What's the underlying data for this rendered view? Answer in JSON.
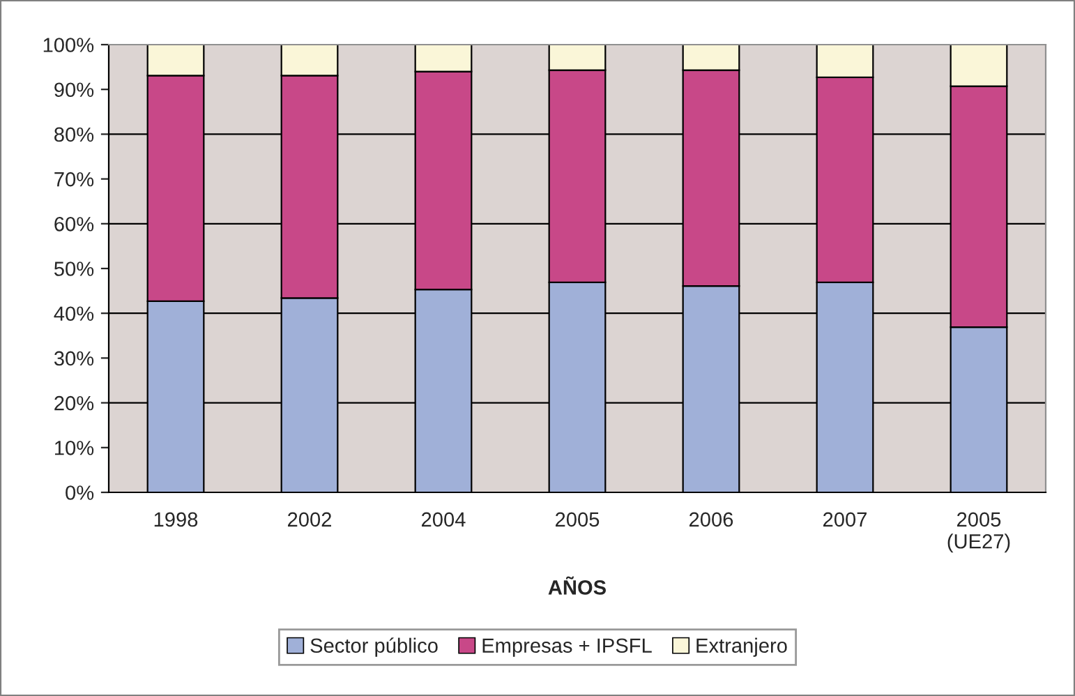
{
  "chart_data": {
    "type": "bar",
    "stacked": true,
    "xlabel": "AÑOS",
    "categories": [
      "1998",
      "2002",
      "2004",
      "2005",
      "2006",
      "2007",
      "2005\n(UE27)"
    ],
    "series": [
      {
        "name": "Sector público",
        "color": "#a0b0d8",
        "values": [
          42.7,
          43.4,
          45.3,
          46.9,
          46.1,
          46.9,
          36.9
        ]
      },
      {
        "name": "Empresas + IPSFL",
        "color": "#c84888",
        "values": [
          50.4,
          49.7,
          48.7,
          47.4,
          48.2,
          45.8,
          53.8
        ]
      },
      {
        "name": "Extranjero",
        "color": "#faf6d8",
        "values": [
          6.9,
          6.9,
          6.0,
          5.7,
          5.7,
          7.3,
          9.3
        ]
      }
    ],
    "ylim": [
      0,
      100
    ],
    "yticks": [
      {
        "value": 0,
        "label": "0%"
      },
      {
        "value": 10,
        "label": "10%"
      },
      {
        "value": 20,
        "label": "20%"
      },
      {
        "value": 30,
        "label": "30%"
      },
      {
        "value": 40,
        "label": "40%"
      },
      {
        "value": 50,
        "label": "50%"
      },
      {
        "value": 60,
        "label": "60%"
      },
      {
        "value": 70,
        "label": "70%"
      },
      {
        "value": 80,
        "label": "80%"
      },
      {
        "value": 90,
        "label": "90%"
      },
      {
        "value": 100,
        "label": "100%"
      }
    ],
    "grid": "y",
    "legend": "bottom"
  }
}
